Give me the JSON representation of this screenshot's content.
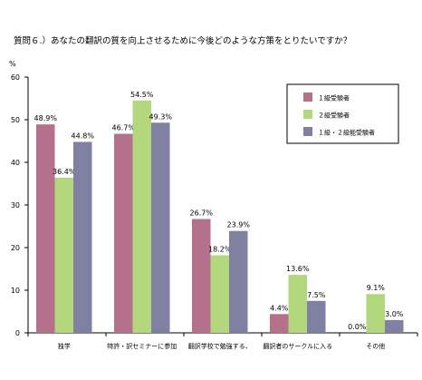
{
  "chart_data": {
    "type": "bar",
    "title": "質問６.）あなたの翻訳の質を向上させるために今後どのような方策をとりたいですか？",
    "ylabel": "%",
    "ylim": [
      0,
      60
    ],
    "yticks": [
      0,
      10,
      20,
      30,
      40,
      50,
      60
    ],
    "grid": false,
    "legend_position": "top-right",
    "categories": [
      "独学",
      "特許・訳セミナーに参加",
      "翻訳学校で勉強する、",
      "翻訳者のサークルに入る",
      "その他"
    ],
    "series": [
      {
        "name": "１級受験者",
        "color": "#b5708b",
        "values": [
          48.9,
          46.7,
          26.7,
          4.4,
          0.0
        ],
        "labels": [
          "48.9%",
          "46.7%",
          "26.7%",
          "4.4%",
          "0.0%"
        ]
      },
      {
        "name": "２級受験者",
        "color": "#b3d77d",
        "values": [
          36.4,
          54.5,
          18.2,
          13.6,
          9.1
        ],
        "labels": [
          "36.4%",
          "54.5%",
          "18.2%",
          "13.6%",
          "9.1%"
        ]
      },
      {
        "name": "１級・２級能受験者",
        "color": "#7f80a2",
        "values": [
          44.8,
          49.3,
          23.9,
          7.5,
          3.0
        ],
        "labels": [
          "44.8%",
          "49.3%",
          "23.9%",
          "7.5%",
          "3.0%"
        ]
      }
    ]
  }
}
